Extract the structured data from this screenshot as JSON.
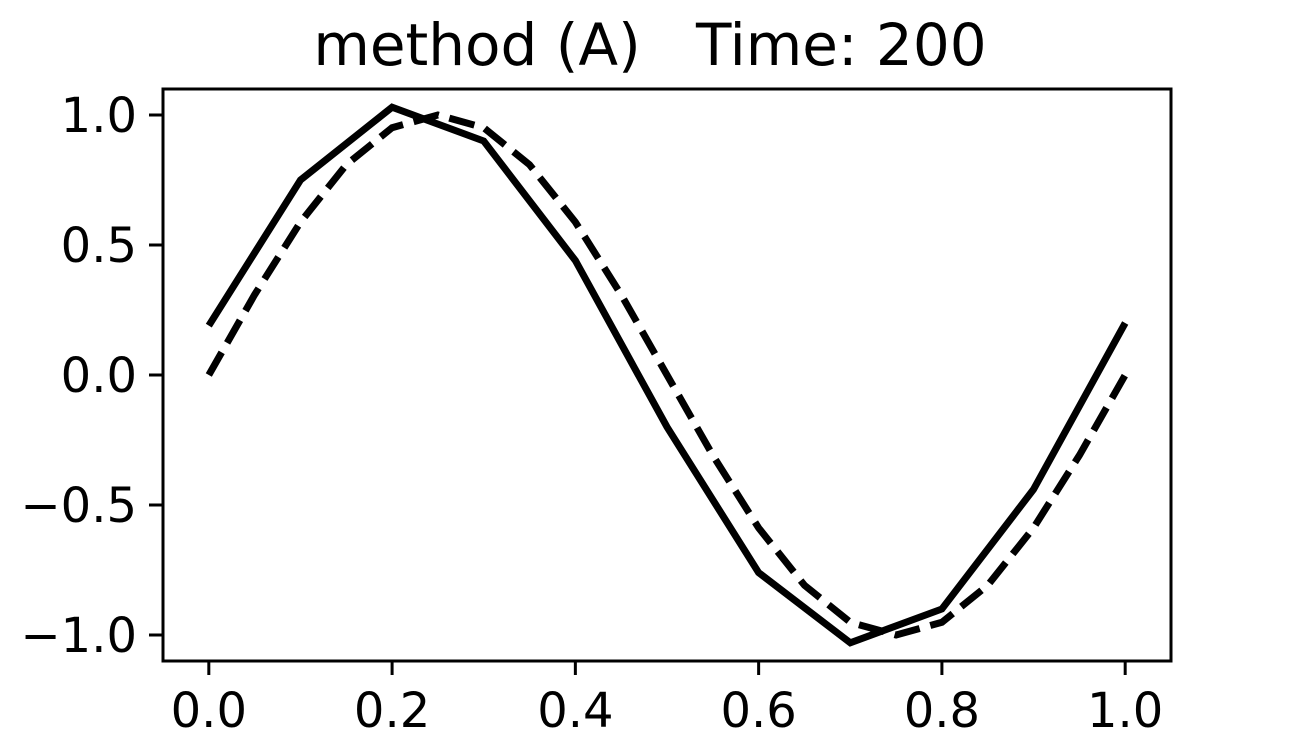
{
  "chart_data": {
    "type": "line",
    "title": "method (A)   Time: 200",
    "xlabel": "",
    "ylabel": "",
    "xlim": [
      -0.05,
      1.05
    ],
    "ylim": [
      -1.1,
      1.1
    ],
    "x_ticks": [
      0.0,
      0.2,
      0.4,
      0.6,
      0.8,
      1.0
    ],
    "x_tick_labels": [
      "0.0",
      "0.2",
      "0.4",
      "0.6",
      "0.8",
      "1.0"
    ],
    "y_ticks": [
      1.0,
      0.5,
      0.0,
      -0.5,
      -1.0
    ],
    "y_tick_labels": [
      "1.0",
      "0.5",
      "0.0",
      "−0.5",
      "−1.0"
    ],
    "grid": false,
    "legend": "none",
    "series": [
      {
        "style": "solid",
        "color": "#000000",
        "x": [
          0.0,
          0.1,
          0.2,
          0.3,
          0.4,
          0.5,
          0.6,
          0.7,
          0.8,
          0.9,
          1.0
        ],
        "y": [
          0.19,
          0.75,
          1.03,
          0.9,
          0.44,
          -0.2,
          -0.76,
          -1.03,
          -0.9,
          -0.44,
          0.2
        ]
      },
      {
        "style": "dashed",
        "color": "#000000",
        "x": [
          0.0,
          0.05,
          0.1,
          0.15,
          0.2,
          0.25,
          0.3,
          0.35,
          0.4,
          0.45,
          0.5,
          0.55,
          0.6,
          0.65,
          0.7,
          0.75,
          0.8,
          0.85,
          0.9,
          0.95,
          1.0
        ],
        "y": [
          0.0,
          0.309,
          0.588,
          0.809,
          0.951,
          1.0,
          0.951,
          0.809,
          0.588,
          0.309,
          0.0,
          -0.309,
          -0.588,
          -0.809,
          -0.951,
          -1.0,
          -0.951,
          -0.809,
          -0.588,
          -0.309,
          0.0
        ]
      }
    ]
  }
}
